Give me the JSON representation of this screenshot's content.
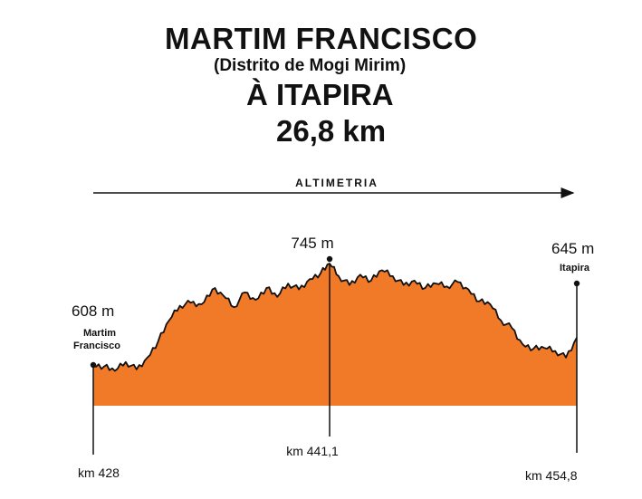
{
  "header": {
    "title_line1": "MARTIM FRANCISCO",
    "title_line2": "(Distrito de Mogi Mirim)",
    "title_line3": "À ITAPIRA",
    "distance": "26,8 km"
  },
  "colors": {
    "fill": "#f07a27",
    "outline": "#111111",
    "axis": "#111111"
  },
  "chart_data": {
    "type": "area",
    "xlabel": "ALTIMETRIA",
    "xlim": [
      428,
      454.8
    ],
    "ylim": [
      560,
      760
    ],
    "x": [
      428.0,
      428.6,
      429.2,
      429.8,
      430.4,
      431.0,
      431.6,
      432.2,
      432.8,
      433.4,
      434.0,
      434.6,
      435.2,
      435.8,
      436.4,
      437.0,
      437.6,
      438.2,
      438.8,
      439.4,
      440.0,
      440.6,
      441.1,
      441.6,
      442.2,
      442.8,
      443.4,
      444.0,
      444.6,
      445.2,
      445.8,
      446.4,
      447.0,
      447.6,
      448.2,
      448.8,
      449.4,
      450.0,
      450.6,
      451.2,
      451.8,
      452.4,
      453.0,
      453.6,
      454.2,
      454.8
    ],
    "elevation": [
      608,
      606,
      600,
      612,
      602,
      618,
      640,
      668,
      688,
      692,
      690,
      710,
      702,
      686,
      706,
      696,
      712,
      700,
      718,
      710,
      724,
      732,
      745,
      728,
      716,
      730,
      722,
      736,
      728,
      716,
      722,
      712,
      718,
      714,
      720,
      710,
      694,
      690,
      668,
      658,
      636,
      630,
      631,
      627,
      618,
      645
    ],
    "markers": [
      {
        "km": 428,
        "km_label": "km 428",
        "elev_label": "608 m",
        "name_line1": "Martim",
        "name_line2": "Francisco"
      },
      {
        "km": 441.1,
        "km_label": "km 441,1",
        "elev_label": "745 m"
      },
      {
        "km": 454.8,
        "km_label": "km 454,8",
        "elev_label": "645 m",
        "name_line1": "Itapira"
      }
    ]
  }
}
